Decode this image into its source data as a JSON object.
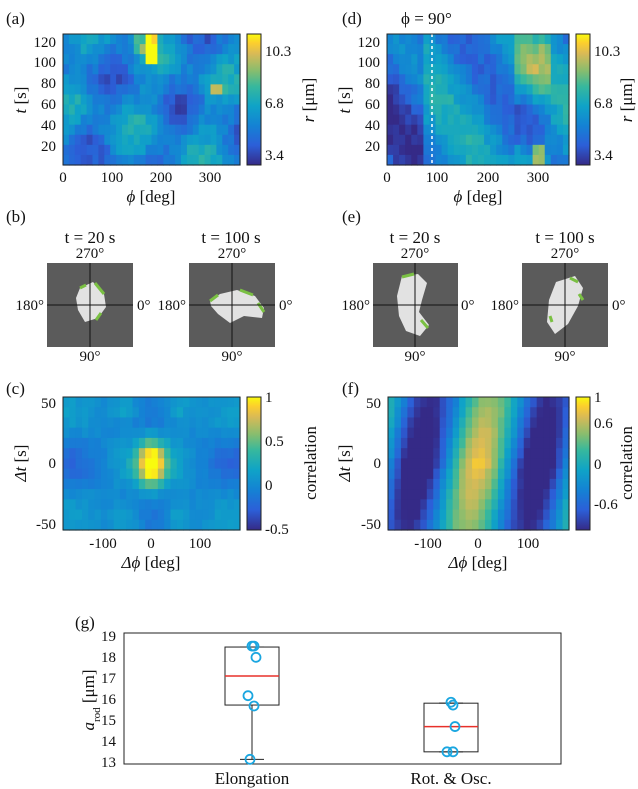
{
  "panels": {
    "a": {
      "label": "(a)",
      "xlabel_var": "ϕ",
      "xlabel_unit": " [deg]",
      "ylabel_var": "t",
      "ylabel_unit": " [s]",
      "xticks": [
        "0",
        "100",
        "200",
        "300"
      ],
      "yticks": [
        "120",
        "100",
        "80",
        "60",
        "40",
        "20"
      ],
      "cbar_ticks": [
        "10.3",
        "6.8",
        "3.4"
      ],
      "cbar_var": "r",
      "cbar_unit": " [μm]"
    },
    "d": {
      "label": "(d)",
      "annotation": "ϕ = 90°",
      "xlabel_var": "ϕ",
      "xlabel_unit": " [deg]",
      "ylabel_var": "t",
      "ylabel_unit": " [s]",
      "xticks": [
        "0",
        "100",
        "200",
        "300"
      ],
      "yticks": [
        "120",
        "100",
        "80",
        "60",
        "40",
        "20"
      ],
      "cbar_ticks": [
        "10.3",
        "6.8",
        "3.4"
      ],
      "cbar_var": "r",
      "cbar_unit": " [μm]"
    },
    "b": {
      "label": "(b)",
      "left_title": "t = 20 s",
      "right_title": "t = 100 s",
      "angle_top": "270°",
      "angle_left": "180°",
      "angle_right": "0°",
      "angle_bottom": "90°"
    },
    "e": {
      "label": "(e)",
      "left_title": "t = 20 s",
      "right_title": "t = 100 s",
      "angle_top": "270°",
      "angle_left": "180°",
      "angle_right": "0°",
      "angle_bottom": "90°"
    },
    "c": {
      "label": "(c)",
      "xlabel_var": "Δϕ",
      "xlabel_unit": " [deg]",
      "ylabel_var": "Δt",
      "ylabel_unit": " [s]",
      "xticks": [
        "-100",
        "0",
        "100"
      ],
      "yticks": [
        "50",
        "0",
        "-50"
      ],
      "cbar_ticks": [
        "1",
        "0.5",
        "0",
        "-0.5"
      ],
      "cbar_label": "correlation"
    },
    "f": {
      "label": "(f)",
      "xlabel_var": "Δϕ",
      "xlabel_unit": " [deg]",
      "ylabel_var": "Δt",
      "ylabel_unit": " [s]",
      "xticks": [
        "-100",
        "0",
        "100"
      ],
      "yticks": [
        "50",
        "0",
        "-50"
      ],
      "cbar_ticks": [
        "1",
        "0.6",
        "0",
        "-0.6"
      ],
      "cbar_label": "correlation"
    },
    "g": {
      "label": "(g)",
      "ylabel": "a",
      "ylabel_sub": "rod",
      "ylabel_unit": " [μm]",
      "yticks": [
        "19",
        "18",
        "17",
        "16",
        "15",
        "14",
        "13"
      ]
    }
  },
  "colors": {
    "median": "#e8302a",
    "points": "#1aa6e0",
    "shape_fill": "#e2e2e2",
    "shape_bg": "#5b5b5b",
    "edge": "#7ac043"
  },
  "chart_data": [
    {
      "panel": "a",
      "type": "heatmap",
      "xlabel": "ϕ [deg]",
      "ylabel": "t [s]",
      "xlim": [
        0,
        360
      ],
      "ylim": [
        5,
        125
      ],
      "colorbar": {
        "label": "r [μm]",
        "range": [
          3.4,
          10.3
        ],
        "ticks": [
          3.4,
          6.8,
          10.3
        ]
      }
    },
    {
      "panel": "d",
      "type": "heatmap",
      "xlabel": "ϕ [deg]",
      "ylabel": "t [s]",
      "xlim": [
        0,
        360
      ],
      "ylim": [
        5,
        125
      ],
      "annotation": "ϕ = 90°",
      "reference_line_x": 90,
      "colorbar": {
        "label": "r [μm]",
        "range": [
          3.4,
          10.3
        ],
        "ticks": [
          3.4,
          6.8,
          10.3
        ]
      }
    },
    {
      "panel": "c",
      "type": "heatmap",
      "xlabel": "Δϕ [deg]",
      "ylabel": "Δt [s]",
      "xlim": [
        -180,
        180
      ],
      "ylim": [
        -50,
        50
      ],
      "colorbar": {
        "label": "correlation",
        "range": [
          -0.5,
          1
        ],
        "ticks": [
          -0.5,
          0,
          0.5,
          1
        ]
      }
    },
    {
      "panel": "f",
      "type": "heatmap",
      "xlabel": "Δϕ [deg]",
      "ylabel": "Δt [s]",
      "xlim": [
        -180,
        180
      ],
      "ylim": [
        -50,
        50
      ],
      "colorbar": {
        "label": "correlation",
        "range": [
          -0.6,
          1
        ],
        "ticks": [
          -0.6,
          0,
          0.6,
          1
        ]
      }
    },
    {
      "panel": "g",
      "type": "box",
      "ylabel": "a_rod [μm]",
      "ylim": [
        12.2,
        19.2
      ],
      "categories": [
        "Elongation",
        "Rot. & Osc."
      ],
      "boxes": [
        {
          "name": "Elongation",
          "min": 12.45,
          "q1": 15.35,
          "median": 16.9,
          "q3": 18.45,
          "max": 18.45,
          "points": [
            18.5,
            18.5,
            17.9,
            15.85,
            15.3,
            12.45
          ]
        },
        {
          "name": "Rot. & Osc.",
          "min": 12.85,
          "q1": 12.85,
          "median": 14.2,
          "q3": 15.45,
          "max": 15.45,
          "points": [
            15.5,
            15.35,
            14.2,
            12.85,
            12.85
          ]
        }
      ]
    }
  ]
}
